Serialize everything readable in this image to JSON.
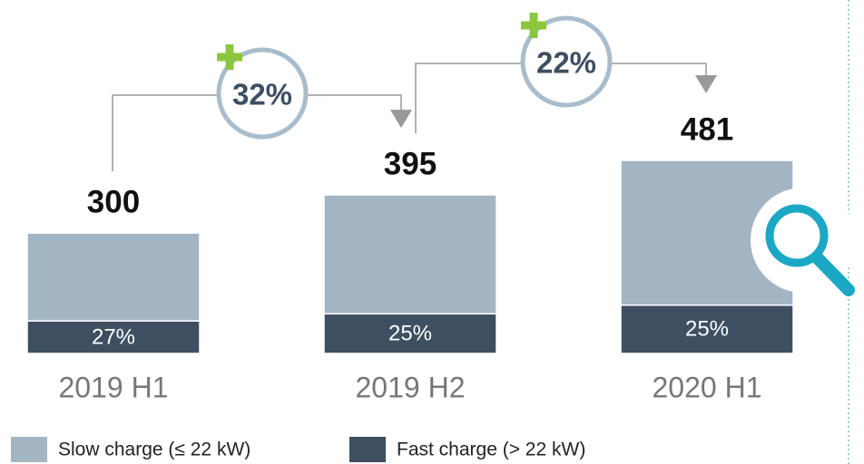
{
  "chart_data": {
    "type": "bar",
    "categories": [
      "2019 H1",
      "2019 H2",
      "2020 H1"
    ],
    "totals": [
      300,
      395,
      481
    ],
    "series": [
      {
        "name": "Slow charge (≤ 22 kW)",
        "color": "#a3b5c3",
        "values": [
          73,
          75,
          75
        ]
      },
      {
        "name": "Fast charge (> 22 kW)",
        "color": "#3d4f61",
        "values": [
          27,
          25,
          25
        ],
        "value_labels": [
          "27%",
          "25%",
          "25%"
        ]
      }
    ],
    "growth": [
      32,
      22
    ],
    "growth_labels": [
      "32%",
      "22%"
    ]
  }
}
